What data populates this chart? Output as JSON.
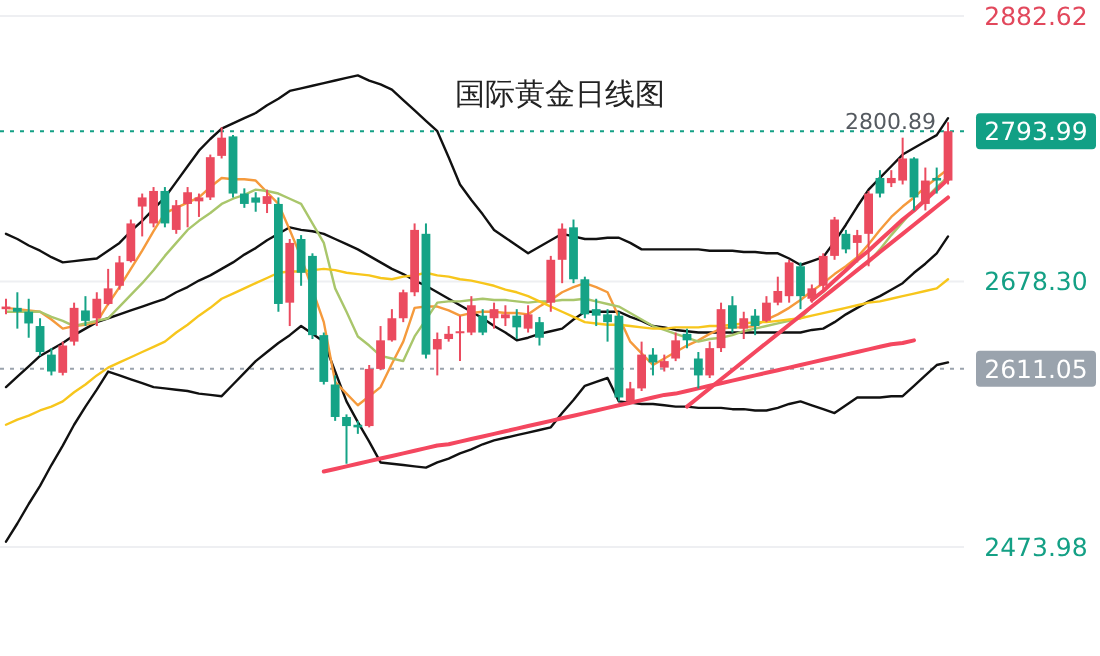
{
  "chart_data": {
    "type": "candlestick",
    "title": "国际黄金日线图",
    "categories": [
      null,
      null,
      null,
      null,
      null,
      null,
      null,
      null,
      null,
      null,
      null,
      null,
      null,
      null,
      null,
      null,
      null,
      null,
      null,
      null,
      null,
      null,
      null,
      null,
      null,
      null,
      null,
      null,
      null,
      null,
      null,
      null,
      null,
      null,
      null,
      null,
      null,
      null,
      null,
      null,
      null,
      null,
      null,
      null,
      null,
      null,
      null,
      null,
      null,
      null,
      null,
      null,
      null,
      null,
      null,
      null,
      null,
      null,
      null,
      null,
      null,
      null,
      null,
      null,
      null,
      null,
      null,
      null,
      null,
      null,
      null,
      null,
      null,
      null,
      null,
      null,
      null,
      null,
      null,
      null,
      null,
      null,
      null,
      null
    ],
    "ohlc": [
      [
        2657,
        2665,
        2653,
        2659
      ],
      [
        2658,
        2670,
        2642,
        2655
      ],
      [
        2655,
        2665,
        2635,
        2646
      ],
      [
        2644,
        2650,
        2621,
        2624
      ],
      [
        2622,
        2627,
        2606,
        2609
      ],
      [
        2608,
        2632,
        2606,
        2629
      ],
      [
        2632,
        2662,
        2629,
        2658
      ],
      [
        2656,
        2667,
        2644,
        2648
      ],
      [
        2650,
        2670,
        2644,
        2665
      ],
      [
        2661,
        2688,
        2660,
        2673
      ],
      [
        2675,
        2698,
        2672,
        2693
      ],
      [
        2694,
        2726,
        2693,
        2723
      ],
      [
        2736,
        2746,
        2713,
        2743
      ],
      [
        2723,
        2751,
        2720,
        2748
      ],
      [
        2748,
        2751,
        2720,
        2723
      ],
      [
        2718,
        2741,
        2715,
        2737
      ],
      [
        2738,
        2751,
        2720,
        2747
      ],
      [
        2740,
        2746,
        2728,
        2743
      ],
      [
        2743,
        2776,
        2741,
        2774
      ],
      [
        2775,
        2797,
        2773,
        2789
      ],
      [
        2790,
        2791,
        2743,
        2746
      ],
      [
        2746,
        2750,
        2735,
        2738
      ],
      [
        2743,
        2747,
        2732,
        2739
      ],
      [
        2738,
        2749,
        2731,
        2744
      ],
      [
        2738,
        2743,
        2655,
        2661
      ],
      [
        2662,
        2711,
        2644,
        2708
      ],
      [
        2711,
        2714,
        2675,
        2685
      ],
      [
        2698,
        2700,
        2634,
        2637
      ],
      [
        2637,
        2639,
        2599,
        2601
      ],
      [
        2599,
        2606,
        2571,
        2574
      ],
      [
        2574,
        2576,
        2538,
        2567
      ],
      [
        2568,
        2571,
        2561,
        2566
      ],
      [
        2567,
        2614,
        2566,
        2611
      ],
      [
        2611,
        2644,
        2610,
        2633
      ],
      [
        2633,
        2657,
        2632,
        2650
      ],
      [
        2650,
        2672,
        2647,
        2670
      ],
      [
        2670,
        2723,
        2667,
        2718
      ],
      [
        2715,
        2723,
        2619,
        2622
      ],
      [
        2626,
        2639,
        2606,
        2634
      ],
      [
        2634,
        2644,
        2632,
        2638
      ],
      [
        2639,
        2652,
        2617,
        2640
      ],
      [
        2639,
        2667,
        2637,
        2660
      ],
      [
        2652,
        2657,
        2637,
        2639
      ],
      [
        2650,
        2662,
        2642,
        2657
      ],
      [
        2650,
        2660,
        2644,
        2653
      ],
      [
        2652,
        2657,
        2634,
        2643
      ],
      [
        2642,
        2660,
        2639,
        2653
      ],
      [
        2647,
        2651,
        2629,
        2635
      ],
      [
        2662,
        2698,
        2655,
        2695
      ],
      [
        2695,
        2723,
        2677,
        2719
      ],
      [
        2720,
        2726,
        2677,
        2680
      ],
      [
        2680,
        2682,
        2650,
        2653
      ],
      [
        2657,
        2665,
        2644,
        2652
      ],
      [
        2653,
        2657,
        2632,
        2647
      ],
      [
        2652,
        2655,
        2586,
        2589
      ],
      [
        2586,
        2601,
        2584,
        2596
      ],
      [
        2596,
        2632,
        2594,
        2622
      ],
      [
        2622,
        2627,
        2606,
        2616
      ],
      [
        2612,
        2622,
        2609,
        2617
      ],
      [
        2619,
        2639,
        2617,
        2633
      ],
      [
        2638,
        2642,
        2627,
        2633
      ],
      [
        2619,
        2624,
        2596,
        2606
      ],
      [
        2606,
        2632,
        2604,
        2627
      ],
      [
        2627,
        2662,
        2624,
        2657
      ],
      [
        2660,
        2667,
        2639,
        2642
      ],
      [
        2642,
        2655,
        2634,
        2650
      ],
      [
        2652,
        2657,
        2637,
        2644
      ],
      [
        2648,
        2667,
        2647,
        2662
      ],
      [
        2662,
        2682,
        2660,
        2671
      ],
      [
        2667,
        2695,
        2662,
        2693
      ],
      [
        2690,
        2693,
        2657,
        2667
      ],
      [
        2665,
        2676,
        2662,
        2673
      ],
      [
        2675,
        2700,
        2672,
        2698
      ],
      [
        2698,
        2728,
        2695,
        2726
      ],
      [
        2715,
        2718,
        2700,
        2703
      ],
      [
        2708,
        2718,
        2693,
        2714
      ],
      [
        2715,
        2748,
        2690,
        2746
      ],
      [
        2758,
        2764,
        2743,
        2746
      ],
      [
        2754,
        2764,
        2751,
        2758
      ],
      [
        2756,
        2789,
        2753,
        2773
      ],
      [
        2773,
        2774,
        2733,
        2743
      ],
      [
        2738,
        2766,
        2733,
        2756
      ],
      [
        2758,
        2766,
        2746,
        2756
      ],
      [
        2756,
        2800.89,
        2753,
        2793.99
      ]
    ],
    "series": [
      {
        "type": "line",
        "color": "#111111",
        "values": [
          2715,
          2711,
          2706,
          2702,
          2697,
          2693,
          2694,
          2695,
          2696,
          2702,
          2708,
          2717,
          2725,
          2734,
          2743,
          2755,
          2767,
          2779,
          2788,
          2796,
          2800,
          2804,
          2808,
          2814,
          2819,
          2825,
          2827,
          2829,
          2831,
          2833,
          2835,
          2837,
          2833,
          2830,
          2826,
          2818,
          2810,
          2802,
          2794,
          2774,
          2753,
          2741,
          2730,
          2718,
          2712,
          2706,
          2700,
          2705,
          2710,
          2715,
          2713,
          2711,
          2711,
          2712,
          2712,
          2708,
          2703,
          2703,
          2703,
          2703,
          2703,
          2703,
          2702,
          2702,
          2702,
          2701,
          2701,
          2700,
          2700,
          2696,
          2691,
          2694,
          2697,
          2709,
          2722,
          2736,
          2749,
          2758,
          2767,
          2776,
          2781,
          2786,
          2791,
          2804
        ]
      },
      {
        "type": "line",
        "color": "#111111",
        "values": [
          2597,
          2605,
          2613,
          2621,
          2626,
          2631,
          2637,
          2642,
          2647,
          2650,
          2653,
          2656,
          2659,
          2662,
          2665,
          2670,
          2674,
          2679,
          2683,
          2688,
          2693,
          2699,
          2704,
          2710,
          2715,
          2720,
          2718,
          2717,
          2715,
          2711,
          2707,
          2703,
          2698,
          2693,
          2688,
          2684,
          2679,
          2675,
          2670,
          2665,
          2660,
          2655,
          2650,
          2644,
          2639,
          2633,
          2635,
          2638,
          2640,
          2642,
          2649,
          2655,
          2655,
          2655,
          2655,
          2651,
          2648,
          2644,
          2643,
          2641,
          2640,
          2639,
          2639,
          2639,
          2639,
          2639,
          2639,
          2639,
          2639,
          2639,
          2639,
          2641,
          2642,
          2647,
          2653,
          2658,
          2663,
          2667,
          2672,
          2677,
          2685,
          2692,
          2700,
          2713
        ]
      },
      {
        "type": "line",
        "color": "#111111",
        "values": [
          2478,
          2492,
          2507,
          2521,
          2537,
          2552,
          2568,
          2582,
          2595,
          2609,
          2606,
          2603,
          2600,
          2597,
          2596,
          2595,
          2594,
          2592,
          2591,
          2590,
          2599,
          2608,
          2617,
          2624,
          2631,
          2637,
          2644,
          2638,
          2632,
          2609,
          2586,
          2570,
          2555,
          2539,
          2538,
          2537,
          2536,
          2535,
          2539,
          2542,
          2546,
          2549,
          2553,
          2556,
          2558,
          2560,
          2562,
          2564,
          2566,
          2577,
          2587,
          2598,
          2601,
          2604,
          2586,
          2585,
          2584,
          2584,
          2583,
          2582,
          2582,
          2581,
          2581,
          2581,
          2580,
          2580,
          2579,
          2579,
          2581,
          2584,
          2586,
          2583,
          2580,
          2577,
          2583,
          2589,
          2589,
          2589,
          2590,
          2590,
          2598,
          2606,
          2614,
          2616
        ]
      },
      {
        "type": "line",
        "color": "#f59a3c",
        "values": [
          2658,
          2657,
          2656,
          2655,
          2649,
          2642,
          2644,
          2645,
          2647,
          2661,
          2674,
          2688,
          2702,
          2717,
          2731,
          2735,
          2739,
          2743,
          2751,
          2758,
          2757,
          2757,
          2756,
          2747,
          2738,
          2718,
          2697,
          2672,
          2647,
          2601,
          2592,
          2583,
          2590,
          2597,
          2615,
          2632,
          2658,
          2659,
          2659,
          2656,
          2652,
          2654,
          2655,
          2655,
          2654,
          2654,
          2653,
          2659,
          2664,
          2670,
          2674,
          2677,
          2674,
          2670,
          2651,
          2632,
          2623,
          2614,
          2619,
          2624,
          2629,
          2633,
          2638,
          2642,
          2643,
          2643,
          2644,
          2649,
          2653,
          2658,
          2664,
          2671,
          2677,
          2684,
          2690,
          2697,
          2707,
          2718,
          2728,
          2736,
          2743,
          2751,
          2758,
          2765
        ]
      },
      {
        "type": "line",
        "color": "#a9c66b",
        "values": [
          2655,
          2655,
          2655,
          2655,
          2651,
          2648,
          2644,
          2646,
          2648,
          2650,
          2659,
          2668,
          2677,
          2687,
          2698,
          2708,
          2718,
          2725,
          2731,
          2738,
          2742,
          2745,
          2749,
          2748,
          2746,
          2742,
          2738,
          2723,
          2708,
          2673,
          2655,
          2636,
          2629,
          2621,
          2619,
          2617,
          2636,
          2649,
          2662,
          2663,
          2663,
          2664,
          2665,
          2664,
          2664,
          2663,
          2662,
          2663,
          2663,
          2664,
          2664,
          2665,
          2663,
          2661,
          2659,
          2654,
          2649,
          2644,
          2641,
          2638,
          2635,
          2632,
          2634,
          2635,
          2637,
          2640,
          2642,
          2644,
          2646,
          2648,
          2650,
          2659,
          2667,
          2674,
          2680,
          2687,
          2693,
          2703,
          2714,
          2724,
          2734,
          2742,
          2751,
          2759
        ]
      },
      {
        "type": "line",
        "color": "#f7c61c",
        "values": [
          2568,
          2572,
          2575,
          2579,
          2582,
          2586,
          2593,
          2599,
          2606,
          2612,
          2616,
          2620,
          2624,
          2628,
          2632,
          2639,
          2645,
          2652,
          2658,
          2665,
          2669,
          2673,
          2677,
          2681,
          2685,
          2686,
          2686,
          2687,
          2688,
          2687,
          2685,
          2684,
          2683,
          2681,
          2680,
          2682,
          2683,
          2685,
          2683,
          2682,
          2680,
          2679,
          2677,
          2675,
          2672,
          2670,
          2667,
          2663,
          2659,
          2655,
          2651,
          2647,
          2646,
          2645,
          2645,
          2644,
          2643,
          2642,
          2642,
          2643,
          2643,
          2643,
          2644,
          2644,
          2645,
          2646,
          2647,
          2647,
          2648,
          2649,
          2650,
          2652,
          2654,
          2656,
          2658,
          2660,
          2662,
          2663,
          2665,
          2667,
          2669,
          2671,
          2673,
          2680
        ]
      },
      {
        "type": "line",
        "color": "#f4475f",
        "values": [
          null,
          null,
          null,
          null,
          null,
          null,
          null,
          null,
          null,
          null,
          null,
          null,
          null,
          null,
          null,
          null,
          null,
          null,
          null,
          null,
          null,
          null,
          null,
          null,
          null,
          null,
          null,
          null,
          2532,
          2534,
          2536,
          2538,
          2540,
          2542,
          2544,
          2546,
          2548,
          2550,
          2552,
          2553,
          2555,
          2557,
          2559,
          2561,
          2563,
          2565,
          2567,
          2569,
          2571,
          2573,
          2575,
          2577,
          2579,
          2581,
          2583,
          2585,
          2587,
          2589,
          2591,
          2592,
          2594,
          2596,
          2598,
          2600,
          2602,
          2604,
          2606,
          2608,
          2610,
          2612,
          2614,
          2616,
          2618,
          2620,
          2622,
          2624,
          2626,
          2628,
          2630,
          2631,
          2633,
          null,
          null,
          null
        ]
      },
      {
        "type": "line",
        "color": "#f4475f",
        "values": [
          null,
          null,
          null,
          null,
          null,
          null,
          null,
          null,
          null,
          null,
          null,
          null,
          null,
          null,
          null,
          null,
          null,
          null,
          null,
          null,
          null,
          null,
          null,
          null,
          null,
          null,
          null,
          null,
          null,
          null,
          null,
          null,
          null,
          null,
          null,
          null,
          null,
          null,
          null,
          null,
          null,
          null,
          null,
          null,
          null,
          null,
          null,
          null,
          null,
          null,
          null,
          null,
          null,
          null,
          null,
          null,
          null,
          null,
          null,
          null,
          2582,
          2589,
          2596,
          2603,
          2610,
          2617,
          2624,
          2631,
          2638,
          2645,
          2652,
          2659,
          2666,
          2673,
          2680,
          2687,
          2694,
          2701,
          2708,
          2715,
          2722,
          2729,
          2736,
          2743
        ]
      },
      {
        "type": "line",
        "color": "#f4475f",
        "values": [
          null,
          null,
          null,
          null,
          null,
          null,
          null,
          null,
          null,
          null,
          null,
          null,
          null,
          null,
          null,
          null,
          null,
          null,
          null,
          null,
          null,
          null,
          null,
          null,
          null,
          null,
          null,
          null,
          null,
          null,
          null,
          null,
          null,
          null,
          null,
          null,
          null,
          null,
          null,
          null,
          null,
          null,
          null,
          null,
          null,
          null,
          null,
          null,
          null,
          null,
          null,
          null,
          null,
          null,
          null,
          null,
          null,
          null,
          null,
          null,
          null,
          null,
          null,
          null,
          null,
          null,
          null,
          null,
          null,
          null,
          null,
          2664,
          2671,
          2679,
          2687,
          2695,
          2702,
          2710,
          2718,
          2726,
          2733,
          2741,
          2749,
          2757
        ]
      }
    ],
    "ylim": [
      2473.98,
      2882.62
    ],
    "yticks": [
      2882.62,
      {
        "value": 2678.3,
        "label": "2678.30"
      },
      2473.98
    ],
    "ref_lines": [
      {
        "axis": "y",
        "value": 2793.99,
        "label": "2793.99",
        "color": "#12a085",
        "line_style": "dotted"
      },
      {
        "axis": "y",
        "value": 2611.05,
        "label": "2611.05",
        "color": "#9aa3ad",
        "line_style": "dotted"
      }
    ],
    "annotations": [
      {
        "text": "2800.89",
        "y": 2800.89
      }
    ],
    "grid": "y",
    "tick_labels": "y"
  }
}
